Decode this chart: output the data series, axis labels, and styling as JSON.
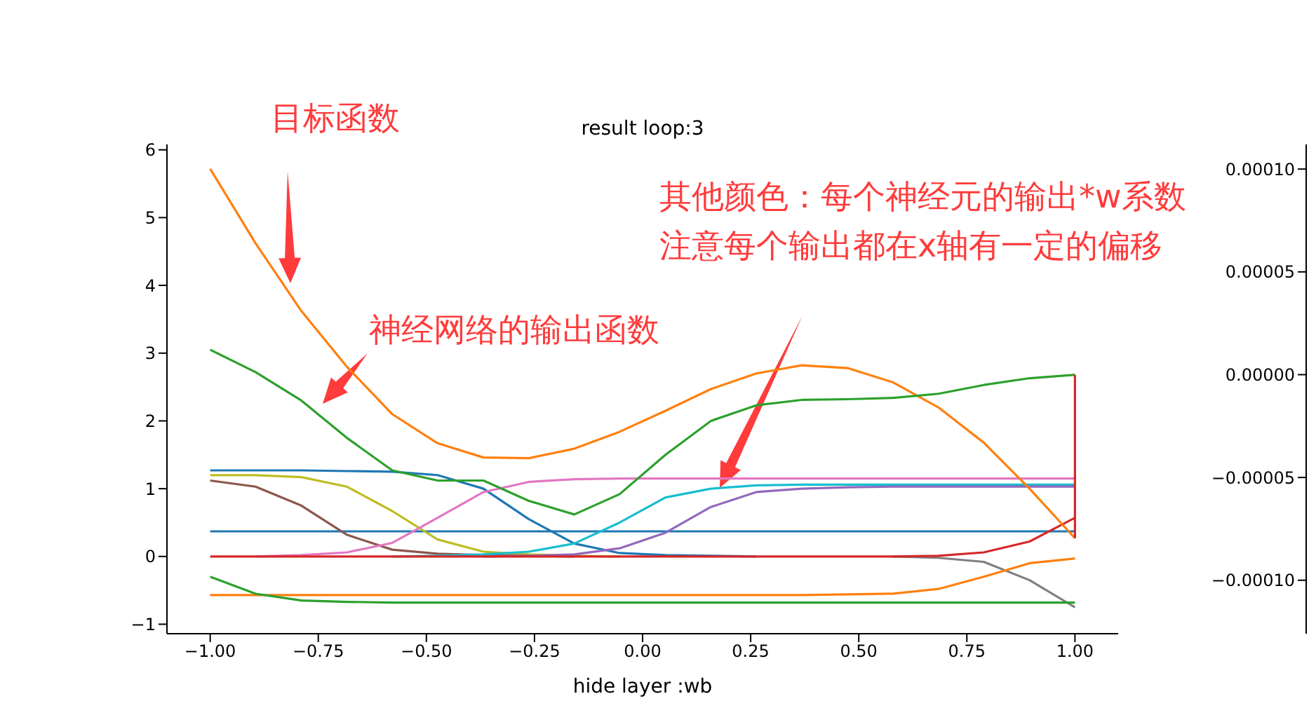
{
  "chart_data": {
    "type": "line",
    "title": "result loop:3",
    "x": [
      -1,
      -0.895,
      -0.789,
      -0.684,
      -0.579,
      -0.474,
      -0.368,
      -0.263,
      -0.158,
      -0.053,
      0.053,
      0.158,
      0.263,
      0.368,
      0.474,
      0.579,
      0.684,
      0.789,
      0.895,
      1
    ],
    "xlim": [
      -1.1,
      1.1
    ],
    "xticks": [
      {
        "value": -1,
        "label": "−1.00"
      },
      {
        "value": -0.75,
        "label": "−0.75"
      },
      {
        "value": -0.5,
        "label": "−0.50"
      },
      {
        "value": -0.25,
        "label": "−0.25"
      },
      {
        "value": 0,
        "label": "0.00"
      },
      {
        "value": 0.25,
        "label": "0.25"
      },
      {
        "value": 0.5,
        "label": "0.50"
      },
      {
        "value": 0.75,
        "label": "0.75"
      },
      {
        "value": 1,
        "label": "1.00"
      }
    ],
    "ylim": [
      -1.14,
      6.08
    ],
    "yticks": [
      {
        "value": -1,
        "label": "−1"
      },
      0,
      1,
      2,
      3,
      4,
      5,
      6
    ],
    "y2lim": [
      -0.000126,
      0.000112
    ],
    "y2ticks": [
      {
        "value": -0.0001,
        "label": "−0.00010"
      },
      {
        "value": -5e-05,
        "label": "−0.00005"
      },
      {
        "value": 0,
        "label": "0.00000"
      },
      {
        "value": 5e-05,
        "label": "0.00005"
      },
      {
        "value": 0.0001,
        "label": "0.00010"
      }
    ],
    "series": [
      {
        "color": "#1f77b4",
        "values": [
          1.27,
          1.27,
          1.27,
          1.26,
          1.25,
          1.2,
          1.0,
          0.55,
          0.19,
          0.05,
          0.02,
          0.01,
          0,
          null,
          null,
          null,
          null,
          null,
          null,
          null
        ]
      },
      {
        "color": "#1f77b4",
        "values": [
          0.37,
          0.37,
          0.37,
          0.37,
          0.37,
          0.37,
          0.37,
          0.37,
          0.37,
          0.37,
          0.37,
          0.37,
          0.37,
          0.37,
          0.37,
          0.37,
          0.37,
          0.37,
          0.37,
          0.37
        ]
      },
      {
        "color": "#bcbd22",
        "values": [
          1.2,
          1.2,
          1.17,
          1.03,
          0.67,
          0.25,
          0.07,
          0.03,
          0.01,
          0,
          null,
          null,
          null,
          null,
          null,
          null,
          null,
          null,
          null,
          null
        ]
      },
      {
        "color": "#8c564b",
        "values": [
          1.12,
          1.03,
          0.75,
          0.32,
          0.1,
          0.04,
          0.02,
          0.01,
          0,
          null,
          null,
          null,
          null,
          null,
          null,
          null,
          null,
          null,
          null,
          null
        ]
      },
      {
        "color": "#e377c2",
        "values": [
          null,
          0,
          0.02,
          0.06,
          0.2,
          0.57,
          0.95,
          1.1,
          1.14,
          1.15,
          1.15,
          1.15,
          1.15,
          1.15,
          1.15,
          1.15,
          1.15,
          1.15,
          1.15,
          1.15
        ]
      },
      {
        "color": "#17becf",
        "values": [
          null,
          null,
          null,
          null,
          0,
          0.01,
          0.03,
          0.07,
          0.19,
          0.5,
          0.87,
          1.0,
          1.05,
          1.06,
          1.06,
          1.06,
          1.06,
          1.06,
          1.06,
          1.06
        ]
      },
      {
        "color": "#9467bd",
        "values": [
          null,
          null,
          null,
          null,
          null,
          null,
          0,
          0.01,
          0.03,
          0.12,
          0.35,
          0.73,
          0.95,
          1.0,
          1.02,
          1.03,
          1.03,
          1.03,
          1.03,
          1.03
        ]
      },
      {
        "color": "#7f7f7f",
        "values": [
          null,
          null,
          null,
          null,
          null,
          null,
          null,
          null,
          null,
          null,
          null,
          null,
          null,
          null,
          null,
          0,
          -0.02,
          -0.08,
          -0.35,
          -0.75
        ]
      },
      {
        "color": "#ff7f0e",
        "values": [
          -0.57,
          -0.57,
          -0.57,
          -0.57,
          -0.57,
          -0.57,
          -0.57,
          -0.57,
          -0.57,
          -0.57,
          -0.57,
          -0.57,
          -0.57,
          -0.57,
          -0.56,
          -0.55,
          -0.48,
          -0.3,
          -0.1,
          -0.03
        ]
      },
      {
        "color": "#2ca02c",
        "values": [
          -0.3,
          -0.55,
          -0.65,
          -0.67,
          -0.68,
          -0.68,
          -0.68,
          -0.68,
          -0.68,
          -0.68,
          -0.68,
          -0.68,
          -0.68,
          -0.68,
          -0.68,
          -0.68,
          -0.68,
          -0.68,
          -0.68,
          -0.68
        ]
      },
      {
        "color": "#d62728",
        "values": [
          0,
          0,
          0,
          0,
          0,
          0,
          0,
          0,
          0,
          0,
          0,
          0,
          0,
          0,
          0,
          0,
          0.01,
          0.06,
          0.22,
          0.57
        ]
      },
      {
        "color": "#ff7f0e",
        "values": [
          5.72,
          4.62,
          3.62,
          2.8,
          2.1,
          1.67,
          1.46,
          1.45,
          1.59,
          1.84,
          2.15,
          2.47,
          2.7,
          2.82,
          2.78,
          2.57,
          2.2,
          1.68,
          1.0,
          0.27
        ]
      },
      {
        "color": "#2ca02c",
        "values": [
          3.05,
          2.72,
          2.3,
          1.75,
          1.27,
          1.12,
          1.12,
          0.82,
          0.62,
          0.92,
          1.5,
          2.0,
          2.23,
          2.31,
          2.32,
          2.34,
          2.4,
          2.53,
          2.63,
          2.68
        ]
      },
      {
        "color": "#d62728",
        "x": [
          1,
          1
        ],
        "values": [
          2.68,
          0.27
        ]
      }
    ],
    "annotations": [
      "目标函数",
      "神经网络的输出函数",
      "其他颜色：每个神经元的输出*w系数",
      "注意每个输出都在x轴有一定的偏移",
      "hide layer :wb"
    ]
  }
}
